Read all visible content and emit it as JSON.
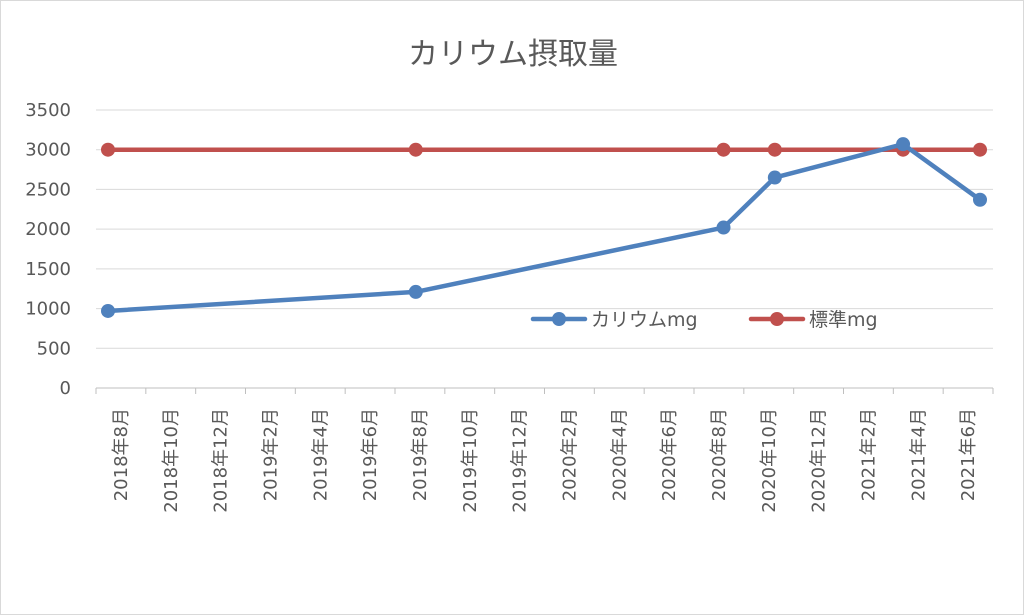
{
  "chart_data": {
    "type": "line",
    "title": "カリウム摂取量",
    "y_ticks": [
      "0",
      "500",
      "1000",
      "1500",
      "2000",
      "2500",
      "3000",
      "3500"
    ],
    "ylim": [
      0,
      3500
    ],
    "x_tick_labels": [
      "2018年8月",
      "2018年10月",
      "2018年12月",
      "2019年2月",
      "2019年4月",
      "2019年6月",
      "2019年8月",
      "2019年10月",
      "2019年12月",
      "2020年2月",
      "2020年4月",
      "2020年6月",
      "2020年8月",
      "2020年10月",
      "2020年12月",
      "2021年2月",
      "2021年4月",
      "2021年6月"
    ],
    "xlim": [
      "2018-08",
      "2021-06"
    ],
    "grid": "horizontal",
    "legend_position": "inside-right",
    "series": [
      {
        "name": "カリウムmg",
        "color": "#4f81bd",
        "points": [
          {
            "x": "2018-08",
            "y": 970
          },
          {
            "x": "2019-08",
            "y": 1210
          },
          {
            "x": "2020-08",
            "y": 2020
          },
          {
            "x": "2020-10",
            "y": 2650
          },
          {
            "x": "2021-03",
            "y": 3070
          },
          {
            "x": "2021-06",
            "y": 2370
          }
        ]
      },
      {
        "name": "標準mg",
        "color": "#c0504d",
        "points": [
          {
            "x": "2018-08",
            "y": 3000
          },
          {
            "x": "2019-08",
            "y": 3000
          },
          {
            "x": "2020-08",
            "y": 3000
          },
          {
            "x": "2020-10",
            "y": 3000
          },
          {
            "x": "2021-03",
            "y": 3000
          },
          {
            "x": "2021-06",
            "y": 3000
          }
        ]
      }
    ]
  }
}
